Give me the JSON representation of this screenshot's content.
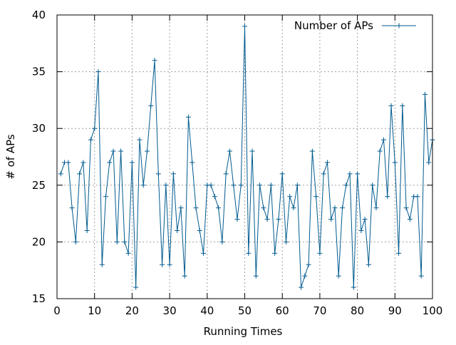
{
  "chart_data": {
    "type": "line",
    "title": "",
    "xlabel": "Running Times",
    "ylabel": "# of APs",
    "xlim": [
      0,
      100
    ],
    "ylim": [
      15,
      40
    ],
    "xticks": [
      0,
      10,
      20,
      30,
      40,
      50,
      60,
      70,
      80,
      90,
      100
    ],
    "yticks": [
      15,
      20,
      25,
      30,
      35,
      40
    ],
    "grid": true,
    "legend_position": "top-right",
    "series": [
      {
        "name": "Number of APs",
        "color": "#005b8f",
        "marker": "plus",
        "x": [
          1,
          2,
          3,
          4,
          5,
          6,
          7,
          8,
          9,
          10,
          11,
          12,
          13,
          14,
          15,
          16,
          17,
          18,
          19,
          20,
          21,
          22,
          23,
          24,
          25,
          26,
          27,
          28,
          29,
          30,
          31,
          32,
          33,
          34,
          35,
          36,
          37,
          38,
          39,
          40,
          41,
          42,
          43,
          44,
          45,
          46,
          47,
          48,
          49,
          50,
          51,
          52,
          53,
          54,
          55,
          56,
          57,
          58,
          59,
          60,
          61,
          62,
          63,
          64,
          65,
          66,
          67,
          68,
          69,
          70,
          71,
          72,
          73,
          74,
          75,
          76,
          77,
          78,
          79,
          80,
          81,
          82,
          83,
          84,
          85,
          86,
          87,
          88,
          89,
          90,
          91,
          92,
          93,
          94,
          95,
          96,
          97,
          98,
          99,
          100
        ],
        "y": [
          26,
          27,
          27,
          23,
          20,
          26,
          27,
          21,
          29,
          30,
          35,
          18,
          24,
          27,
          28,
          20,
          28,
          20,
          19,
          27,
          16,
          29,
          25,
          28,
          32,
          36,
          26,
          18,
          25,
          18,
          26,
          21,
          23,
          17,
          31,
          27,
          23,
          21,
          19,
          25,
          25,
          24,
          23,
          20,
          26,
          28,
          25,
          22,
          25,
          39,
          19,
          28,
          17,
          25,
          23,
          22,
          25,
          19,
          22,
          26,
          20,
          24,
          23,
          25,
          16,
          17,
          18,
          28,
          24,
          19,
          26,
          27,
          22,
          23,
          17,
          23,
          25,
          26,
          16,
          26,
          21,
          22,
          18,
          25,
          23,
          28,
          29,
          24,
          32,
          27,
          19,
          32,
          23,
          22,
          24,
          24,
          17,
          33,
          27,
          29
        ]
      }
    ]
  }
}
